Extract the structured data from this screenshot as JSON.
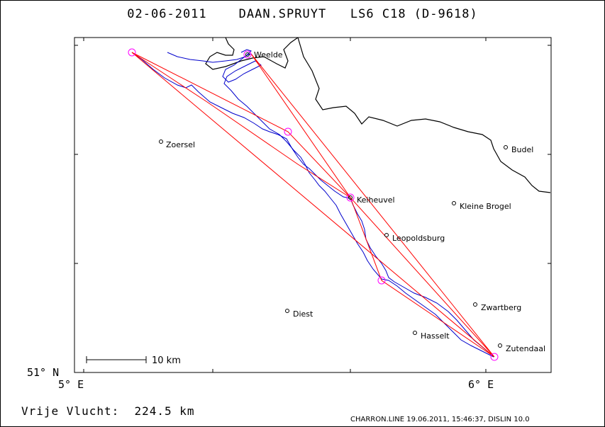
{
  "header": {
    "date": "02-06-2011",
    "pilot": "DAAN.SPRUYT",
    "glider": "LS6 C18 (D-9618)"
  },
  "axes": {
    "lat_label": "51° N",
    "lon_labels": [
      "5° E",
      "6° E"
    ]
  },
  "scale_bar": {
    "label": "10 km"
  },
  "places": [
    {
      "name": "Weelde",
      "kind": "turnpoint"
    },
    {
      "name": "Zoersel",
      "kind": "town"
    },
    {
      "name": "Budel",
      "kind": "town"
    },
    {
      "name": "Keiheuvel",
      "kind": "turnpoint"
    },
    {
      "name": "Kleine Brogel",
      "kind": "town"
    },
    {
      "name": "Leopoldsburg",
      "kind": "town"
    },
    {
      "name": "Diest",
      "kind": "town"
    },
    {
      "name": "Zwartberg",
      "kind": "town"
    },
    {
      "name": "Hasselt",
      "kind": "town"
    },
    {
      "name": "Zutendaal",
      "kind": "town"
    }
  ],
  "footer": {
    "flight": "Vrije Vlucht:  224.5 km",
    "credit": "CHARRON.LINE 19.06.2011, 15:46:37, DISLIN 10.0"
  },
  "colors": {
    "track": "#0000cc",
    "task": "#ff0000",
    "turnpoint_circle": "#ff00ff",
    "border": "#000000"
  }
}
